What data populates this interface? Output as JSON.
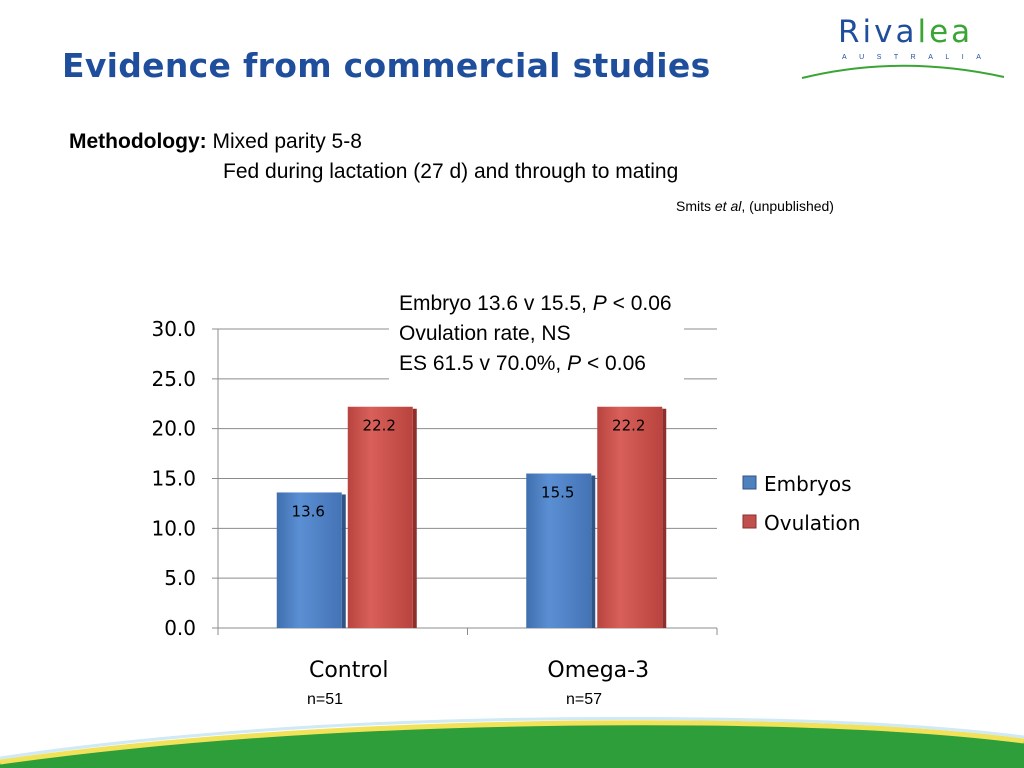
{
  "slide": {
    "title": "Evidence from commercial studies",
    "logo": {
      "word_part1": "Riva",
      "word_part2": "lea",
      "subtitle": "AUSTRALIA"
    },
    "methodology": {
      "label": "Methodology:",
      "line1": "Mixed parity 5-8",
      "line2": "Fed during lactation (27 d) and through to mating"
    },
    "citation": {
      "author": "Smits",
      "etal": "et al",
      "note": ", (unpublished)"
    },
    "stats": {
      "line1_text": "Embryo 13.6 v 15.5, ",
      "line1_p": "P",
      "line1_tail": " < 0.06",
      "line2": "Ovulation rate, NS",
      "line3_text": "ES 61.5 v 70.0%, ",
      "line3_p": "P",
      "line3_tail": " < 0.06"
    },
    "sample_sizes": [
      "n=51",
      "n=57"
    ],
    "colors": {
      "title": "#1f4e9c",
      "embryos": "#4f81bd",
      "ovulation": "#c0504d",
      "green": "#3aa535"
    }
  },
  "chart_data": {
    "type": "bar",
    "categories": [
      "Control",
      "Omega-3"
    ],
    "series": [
      {
        "name": "Embryos",
        "values": [
          13.6,
          15.5
        ],
        "labels": [
          "13.6",
          "15.5"
        ]
      },
      {
        "name": "Ovulation",
        "values": [
          22.2,
          22.2
        ],
        "labels": [
          "22.2",
          "22.2"
        ]
      }
    ],
    "ylim": [
      0,
      30
    ],
    "yticks": [
      "0.0",
      "5.0",
      "10.0",
      "15.0",
      "20.0",
      "25.0",
      "30.0"
    ],
    "grid": true,
    "legend": "right"
  }
}
